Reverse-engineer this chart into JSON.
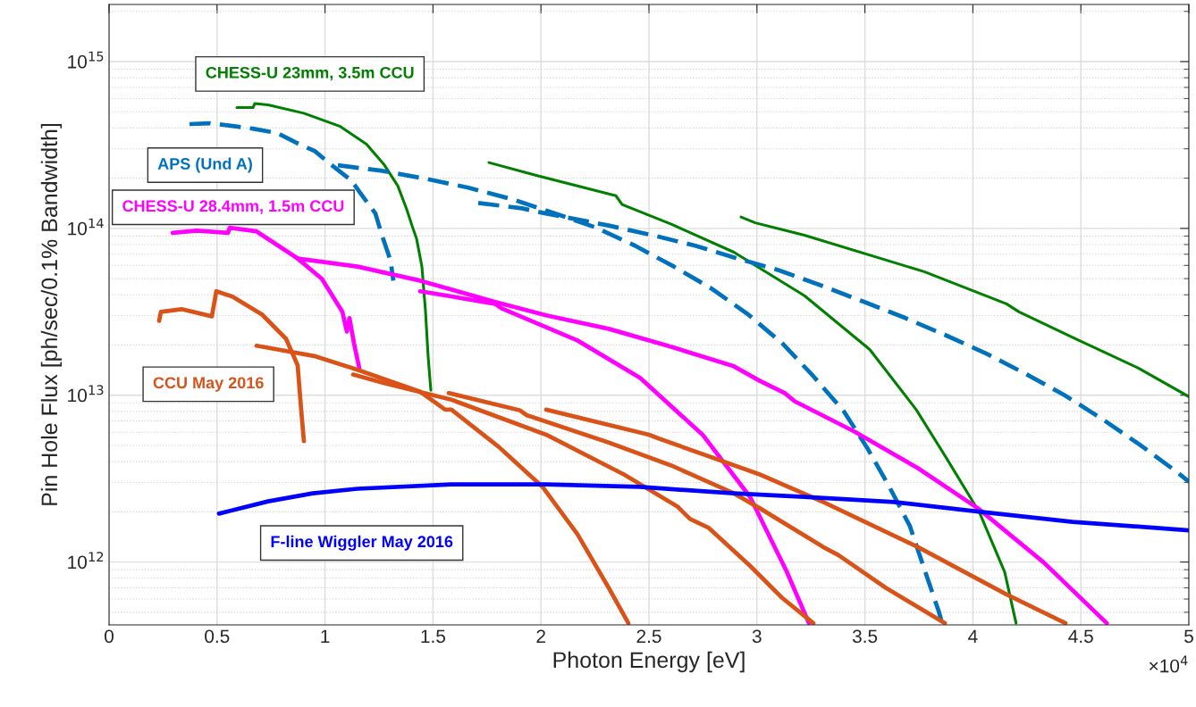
{
  "chart_data": {
    "type": "line",
    "xlabel": "Photon Energy [eV]",
    "ylabel": "Pin Hole Flux [ph/sec/0.1% Bandwidth]",
    "log": "y",
    "grid": true,
    "xlim": [
      0,
      5
    ],
    "ylim": [
      420000000000.0,
      2200000000000000.0
    ],
    "xticks": [
      0,
      0.5,
      1,
      1.5,
      2,
      2.5,
      3,
      3.5,
      4,
      4.5,
      5
    ],
    "yticks": [
      {
        "value": 1000000000000.0,
        "label": "10$^{12}$"
      },
      {
        "value": 10000000000000.0,
        "label": "10$^{13}$"
      },
      {
        "value": 100000000000000.0,
        "label": "10$^{14}$"
      },
      {
        "value": 1000000000000000.0,
        "label": "10$^{15}$"
      }
    ],
    "annotations": [
      "×10$^{4}$"
    ],
    "series": [
      {
        "name": "CHESS-U 23mm, 3.5m CCU",
        "color": "#007f00",
        "x": [
          0.5919,
          0.6664,
          0.6747,
          0.7367,
          0.9023,
          1.0679,
          1.192,
          1.2748,
          1.3369,
          1.3783,
          1.4073,
          1.4238,
          1.4487,
          1.4652,
          1.4776,
          1.49
        ],
        "values": [
          530000000000000.0,
          530000000000000.0,
          560000000000000.0,
          550000000000000.0,
          490000000000000.0,
          410000000000000.0,
          320000000000000.0,
          240000000000000.0,
          180000000000000.0,
          130000000000000.0,
          100000000000000.0,
          87000000000000.0,
          59000000000000.0,
          32000000000000.0,
          17000000000000.0,
          10700000000000.0
        ]
      },
      {
        "color": "#007f00",
        "x": [
          1.7591,
          1.9784,
          2.3468,
          2.3758,
          2.6034,
          2.8932,
          3.2201,
          3.5223,
          3.7375,
          3.8824,
          4.0314,
          4.1473,
          4.2
        ],
        "values": [
          248000000000000.0,
          208000000000000.0,
          157000000000000.0,
          139000000000000.0,
          106000000000000.0,
          72000000000000.0,
          39500000000000.0,
          18800000000000.0,
          8200000000000.0,
          4100000000000.0,
          1970000000000.0,
          870000000000.0,
          430000000000.0
        ]
      },
      {
        "color": "#007f00",
        "x": [
          2.9263,
          2.9925,
          3.2201,
          3.7748,
          4.1556,
          4.2135,
          4.4742,
          4.7681,
          5.0
        ],
        "values": [
          117000000000000.0,
          108000000000000.0,
          91000000000000.0,
          55000000000000.0,
          35300000000000.0,
          31600000000000.0,
          21800000000000.0,
          14500000000000.0,
          9800000000000.0
        ]
      },
      {
        "name": "APS (Und A)",
        "color": "#0072bd",
        "line_style": "dashed",
        "x": [
          0.3725,
          0.4677,
          0.5712,
          0.6664,
          0.7781,
          0.8609,
          0.952,
          1.0265,
          1.1217,
          1.1631,
          1.2334,
          1.2624,
          1.3038,
          1.3162
        ],
        "values": [
          422000000000000.0,
          427000000000000.0,
          411000000000000.0,
          396000000000000.0,
          373000000000000.0,
          329000000000000.0,
          291000000000000.0,
          242000000000000.0,
          194000000000000.0,
          163000000000000.0,
          123000000000000.0,
          92000000000000.0,
          64000000000000.0,
          48600000000000.0
        ]
      },
      {
        "color": "#0072bd",
        "line_style": "dashed",
        "x": [
          1.0596,
          1.2583,
          1.4611,
          1.6597,
          1.8626,
          2.0571,
          2.2475,
          2.4337,
          2.6158,
          2.7897,
          2.9594,
          3.1167,
          3.2615,
          3.4023,
          3.5099,
          3.6134,
          3.7085,
          3.7748,
          3.841,
          3.8534
        ],
        "values": [
          239000000000000.0,
          222000000000000.0,
          199000000000000.0,
          176000000000000.0,
          150000000000000.0,
          124000000000000.0,
          102000000000000.0,
          79000000000000.0,
          59000000000000.0,
          43600000000000.0,
          30500000000000.0,
          20500000000000.0,
          13000000000000.0,
          8000000000000.0,
          4850000000000.0,
          2820000000000.0,
          1640000000000.0,
          910000000000.0,
          510000000000.0,
          450000000000.0
        ]
      },
      {
        "color": "#0072bd",
        "line_style": "dashed",
        "x": [
          1.7094,
          1.9122,
          2.0074,
          2.3137,
          2.5165,
          2.711,
          2.9097,
          3.1043,
          3.3071,
          3.4975,
          3.6878,
          3.8741,
          4.0645,
          4.2508,
          4.4246,
          4.5985,
          4.7681,
          4.9379,
          5.0
        ],
        "values": [
          142000000000000.0,
          132000000000000.0,
          124000000000000.0,
          104000000000000.0,
          91000000000000.0,
          79000000000000.0,
          66000000000000.0,
          56000000000000.0,
          45000000000000.0,
          36200000000000.0,
          29000000000000.0,
          22900000000000.0,
          17700000000000.0,
          13300000000000.0,
          10000000000000.0,
          7200000000000.0,
          5100000000000.0,
          3520000000000.0,
          3030000000000.0
        ]
      },
      {
        "name": "CHESS-U 28.4mm, 1.5m CCU",
        "color": "#ff00ff",
        "x": [
          0.2939,
          0.4056,
          0.5505,
          0.5588,
          0.6829,
          0.8733,
          0.9851,
          1.0803,
          1.101,
          1.1134,
          1.1341,
          1.1589
        ],
        "values": [
          94000000000000.0,
          97000000000000.0,
          94000000000000.0,
          101000000000000.0,
          96000000000000.0,
          66000000000000.0,
          49900000000000.0,
          31600000000000.0,
          24100000000000.0,
          29000000000000.0,
          20500000000000.0,
          14500000000000.0
        ]
      },
      {
        "color": "#ff00ff",
        "x": [
          0.8733,
          1.1506,
          1.4404,
          1.788,
          2.024,
          2.3137,
          2.6034,
          2.8932,
          3.0132,
          3.1291,
          3.1746,
          3.4519,
          3.7458,
          4.0231,
          4.3294,
          4.62
        ],
        "values": [
          66000000000000.0,
          59000000000000.0,
          48600000000000.0,
          36200000000000.0,
          30100000000000.0,
          25000000000000.0,
          19500000000000.0,
          14900000000000.0,
          12200000000000.0,
          10300000000000.0,
          9200000000000.0,
          6050000000000.0,
          3650000000000.0,
          2100000000000.0,
          990000000000.0,
          430000000000.0
        ]
      },
      {
        "color": "#ff00ff",
        "x": [
          1.4404,
          1.788,
          1.817,
          2.1688,
          2.4586,
          2.7483,
          2.9677,
          3.1374,
          3.2408
        ],
        "values": [
          42000000000000.0,
          35300000000000.0,
          33200000000000.0,
          21300000000000.0,
          12700000000000.0,
          5800000000000.0,
          2460000000000.0,
          880000000000.0,
          430000000000.0
        ]
      },
      {
        "name": "CCU May 2016",
        "color": "#d95319",
        "x": [
          0.2318,
          0.2401,
          0.3353,
          0.476,
          0.4967,
          0.5712,
          0.7078,
          0.8195,
          0.8733,
          0.8899,
          0.9023
        ],
        "values": [
          27900000000000.0,
          31600000000000.0,
          32800000000000.0,
          29700000000000.0,
          42000000000000.0,
          39000000000000.0,
          30500000000000.0,
          21800000000000.0,
          15100000000000.0,
          8100000000000.0,
          5300000000000.0
        ]
      },
      {
        "color": "#d95319",
        "x": [
          0.6829,
          0.9561,
          1.1506,
          1.2955,
          1.4404,
          1.5563,
          1.5852,
          1.8046,
          2.0074,
          2.1688,
          2.3137,
          2.4048
        ],
        "values": [
          19800000000000.0,
          17100000000000.0,
          14200000000000.0,
          12200000000000.0,
          10500000000000.0,
          8200000000000.0,
          8200000000000.0,
          4900000000000.0,
          2820000000000.0,
          1470000000000.0,
          700000000000.0,
          430000000000.0
        ]
      },
      {
        "color": "#d95319",
        "x": [
          1.13,
          1.2748,
          1.5852,
          2.024,
          2.384,
          2.6324,
          2.6904,
          2.7773,
          2.9677,
          3.1167,
          3.2615
        ],
        "values": [
          13300000000000.0,
          11800000000000.0,
          9400000000000.0,
          5800000000000.0,
          3350000000000.0,
          2150000000000.0,
          1810000000000.0,
          1600000000000.0,
          950000000000.0,
          610000000000.0,
          430000000000.0
        ]
      },
      {
        "color": "#d95319",
        "x": [
          1.5728,
          1.9039,
          1.9329,
          2.3137,
          2.6034,
          2.8932,
          3.0132,
          3.3071,
          3.3774,
          3.5968,
          3.87
        ],
        "values": [
          10300000000000.0,
          8100000000000.0,
          7600000000000.0,
          5200000000000.0,
          3790000000000.0,
          2580000000000.0,
          2100000000000.0,
          1230000000000.0,
          1100000000000.0,
          700000000000.0,
          430000000000.0
        ]
      },
      {
        "color": "#d95319",
        "x": [
          2.024,
          2.5,
          2.5455,
          3.0132,
          3.3071,
          3.7458,
          4.1556,
          4.4287
        ],
        "values": [
          8200000000000.0,
          5800000000000.0,
          5500000000000.0,
          3350000000000.0,
          2290000000000.0,
          1230000000000.0,
          640000000000.0,
          430000000000.0
        ]
      },
      {
        "name": "F-line Wiggler May 2016",
        "color": "#0000ff",
        "x": [
          0.5091,
          0.7367,
          0.9437,
          1.1506,
          1.5852,
          2.024,
          2.4586,
          2.8932,
          3.2201,
          3.634,
          4.0355,
          4.4618,
          5.0
        ],
        "values": [
          1950000000000.0,
          2310000000000.0,
          2580000000000.0,
          2750000000000.0,
          2920000000000.0,
          2920000000000.0,
          2820000000000.0,
          2580000000000.0,
          2460000000000.0,
          2290000000000.0,
          2000000000000.0,
          1740000000000.0,
          1550000000000.0
        ]
      }
    ]
  }
}
